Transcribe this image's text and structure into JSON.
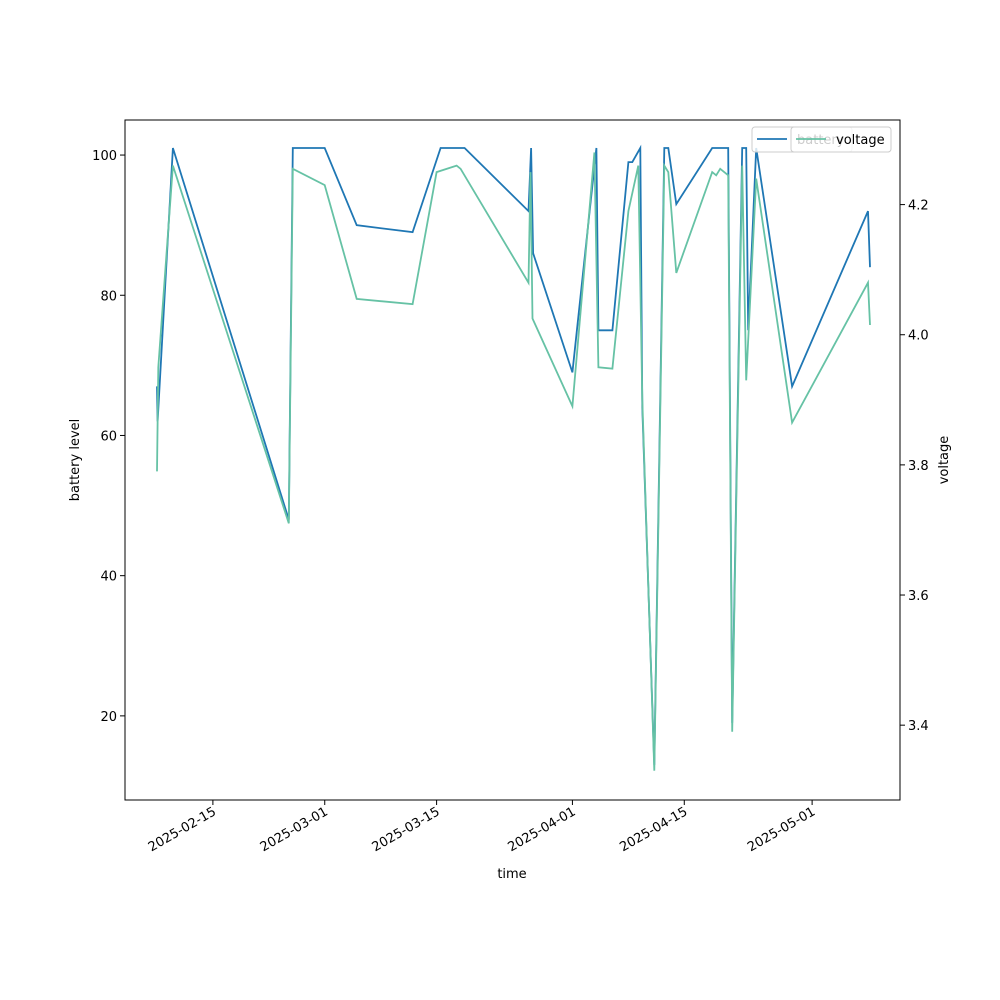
{
  "chart_data": {
    "type": "line",
    "xlabel": "time",
    "ylabel_left": "battery level",
    "ylabel_right": "voltage",
    "x_ticks": [
      "2025-02-15",
      "2025-03-01",
      "2025-03-15",
      "2025-04-01",
      "2025-04-15",
      "2025-05-01"
    ],
    "y_left_ticks": [
      20,
      40,
      60,
      80,
      100
    ],
    "y_right_ticks": [
      "3.4",
      "3.6",
      "3.8",
      "4.0",
      "4.2"
    ],
    "ylim_left": [
      8,
      105
    ],
    "ylim_right": [
      3.285,
      4.33
    ],
    "xlim": [
      "2025-02-04",
      "2025-05-12"
    ],
    "legend_placement": "top-right",
    "colors": {
      "battery": "#1f77b4",
      "voltage": "#66c2a5"
    },
    "series": [
      {
        "name": "battery",
        "axis": "left",
        "points": [
          [
            "2025-02-08T00:00",
            67
          ],
          [
            "2025-02-08T02:00",
            62
          ],
          [
            "2025-02-10T00:00",
            101
          ],
          [
            "2025-02-24T12:00",
            48
          ],
          [
            "2025-02-25T00:00",
            101
          ],
          [
            "2025-02-29T00:00",
            101
          ],
          [
            "2025-03-05T00:00",
            90
          ],
          [
            "2025-03-12T00:00",
            89
          ],
          [
            "2025-03-15T12:00",
            101
          ],
          [
            "2025-03-18T12:00",
            101
          ],
          [
            "2025-03-26T12:00",
            92
          ],
          [
            "2025-03-26T20:00",
            101
          ],
          [
            "2025-03-27T02:00",
            86
          ],
          [
            "2025-04-01T00:00",
            69
          ],
          [
            "2025-04-04T00:00",
            101
          ],
          [
            "2025-04-04T06:00",
            75
          ],
          [
            "2025-04-06T00:00",
            75
          ],
          [
            "2025-04-08T00:00",
            99
          ],
          [
            "2025-04-08T12:00",
            99
          ],
          [
            "2025-04-09T12:00",
            101
          ],
          [
            "2025-04-09T18:00",
            64
          ],
          [
            "2025-04-11T06:00",
            13
          ],
          [
            "2025-04-12T12:00",
            101
          ],
          [
            "2025-04-13T00:00",
            101
          ],
          [
            "2025-04-14T00:00",
            93
          ],
          [
            "2025-04-18T12:00",
            101
          ],
          [
            "2025-04-20T12:00",
            101
          ],
          [
            "2025-04-21T00:00",
            19
          ],
          [
            "2025-04-22T06:00",
            101
          ],
          [
            "2025-04-22T18:00",
            101
          ],
          [
            "2025-04-23T00:00",
            75
          ],
          [
            "2025-04-24T00:00",
            101
          ],
          [
            "2025-04-28T12:00",
            67
          ],
          [
            "2025-05-08T00:00",
            92
          ],
          [
            "2025-05-08T06:00",
            84
          ]
        ]
      },
      {
        "name": "voltage",
        "axis": "right",
        "points": [
          [
            "2025-02-08T00:00",
            3.79
          ],
          [
            "2025-02-08T04:00",
            3.95
          ],
          [
            "2025-02-10T00:00",
            4.26
          ],
          [
            "2025-02-24T12:00",
            3.71
          ],
          [
            "2025-02-25T00:00",
            4.255
          ],
          [
            "2025-02-29T00:00",
            4.23
          ],
          [
            "2025-03-05T00:00",
            4.055
          ],
          [
            "2025-03-12T00:00",
            4.047
          ],
          [
            "2025-03-15T00:00",
            4.25
          ],
          [
            "2025-03-17T12:00",
            4.26
          ],
          [
            "2025-03-18T00:00",
            4.255
          ],
          [
            "2025-03-26T12:00",
            4.08
          ],
          [
            "2025-03-26T18:00",
            4.25
          ],
          [
            "2025-03-27T00:00",
            4.025
          ],
          [
            "2025-04-01T00:00",
            3.89
          ],
          [
            "2025-04-03T18:00",
            4.28
          ],
          [
            "2025-04-04T06:00",
            3.95
          ],
          [
            "2025-04-06T00:00",
            3.948
          ],
          [
            "2025-04-08T00:00",
            4.19
          ],
          [
            "2025-04-09T06:00",
            4.26
          ],
          [
            "2025-04-09T18:00",
            3.9
          ],
          [
            "2025-04-11T06:00",
            3.33
          ],
          [
            "2025-04-12T12:00",
            4.26
          ],
          [
            "2025-04-13T00:00",
            4.25
          ],
          [
            "2025-04-14T00:00",
            4.095
          ],
          [
            "2025-04-18T12:00",
            4.25
          ],
          [
            "2025-04-19T00:00",
            4.245
          ],
          [
            "2025-04-19T12:00",
            4.255
          ],
          [
            "2025-04-20T12:00",
            4.245
          ],
          [
            "2025-04-21T00:00",
            3.39
          ],
          [
            "2025-04-22T06:00",
            4.26
          ],
          [
            "2025-04-22T18:00",
            3.93
          ],
          [
            "2025-04-24T00:00",
            4.24
          ],
          [
            "2025-04-28T12:00",
            3.865
          ],
          [
            "2025-05-08T00:00",
            4.08
          ],
          [
            "2025-05-08T06:00",
            4.015
          ]
        ]
      }
    ],
    "legend": [
      {
        "name": "battery",
        "label": "battery"
      },
      {
        "name": "voltage",
        "label": "voltage"
      }
    ]
  }
}
